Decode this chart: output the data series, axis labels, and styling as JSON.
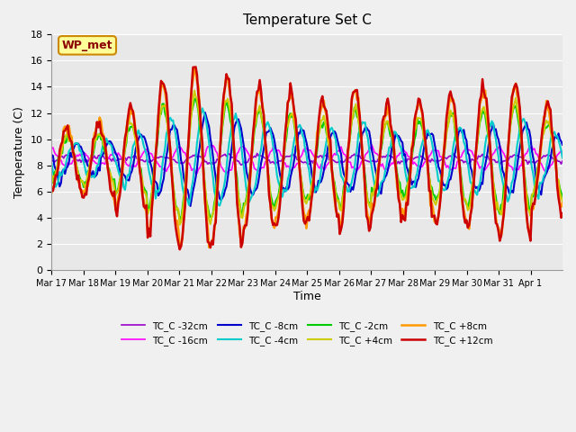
{
  "title": "Temperature Set C",
  "xlabel": "Time",
  "ylabel": "Temperature (C)",
  "ylim": [
    0,
    18
  ],
  "yticks": [
    0,
    2,
    4,
    6,
    8,
    10,
    12,
    14,
    16,
    18
  ],
  "x_labels": [
    "Mar 17",
    "Mar 18",
    "Mar 19",
    "Mar 20",
    "Mar 21",
    "Mar 22",
    "Mar 23",
    "Mar 24",
    "Mar 25",
    "Mar 26",
    "Mar 27",
    "Mar 28",
    "Mar 29",
    "Mar 30",
    "Mar 31",
    "Apr 1"
  ],
  "annotation_text": "WP_met",
  "fig_facecolor": "#F0F0F0",
  "ax_facecolor": "#E8E8E8",
  "series_colors": {
    "TC_C -32cm": "#9900CC",
    "TC_C -16cm": "#FF00FF",
    "TC_C -8cm": "#0000CC",
    "TC_C -4cm": "#00CCCC",
    "TC_C -2cm": "#00CC00",
    "TC_C +4cm": "#CCCC00",
    "TC_C +8cm": "#FF9900",
    "TC_C +12cm": "#CC0000"
  },
  "series_lw": {
    "TC_C -32cm": 1.2,
    "TC_C -16cm": 1.2,
    "TC_C -8cm": 1.5,
    "TC_C -4cm": 1.5,
    "TC_C -2cm": 1.5,
    "TC_C +4cm": 1.5,
    "TC_C +8cm": 1.8,
    "TC_C +12cm": 1.8
  }
}
